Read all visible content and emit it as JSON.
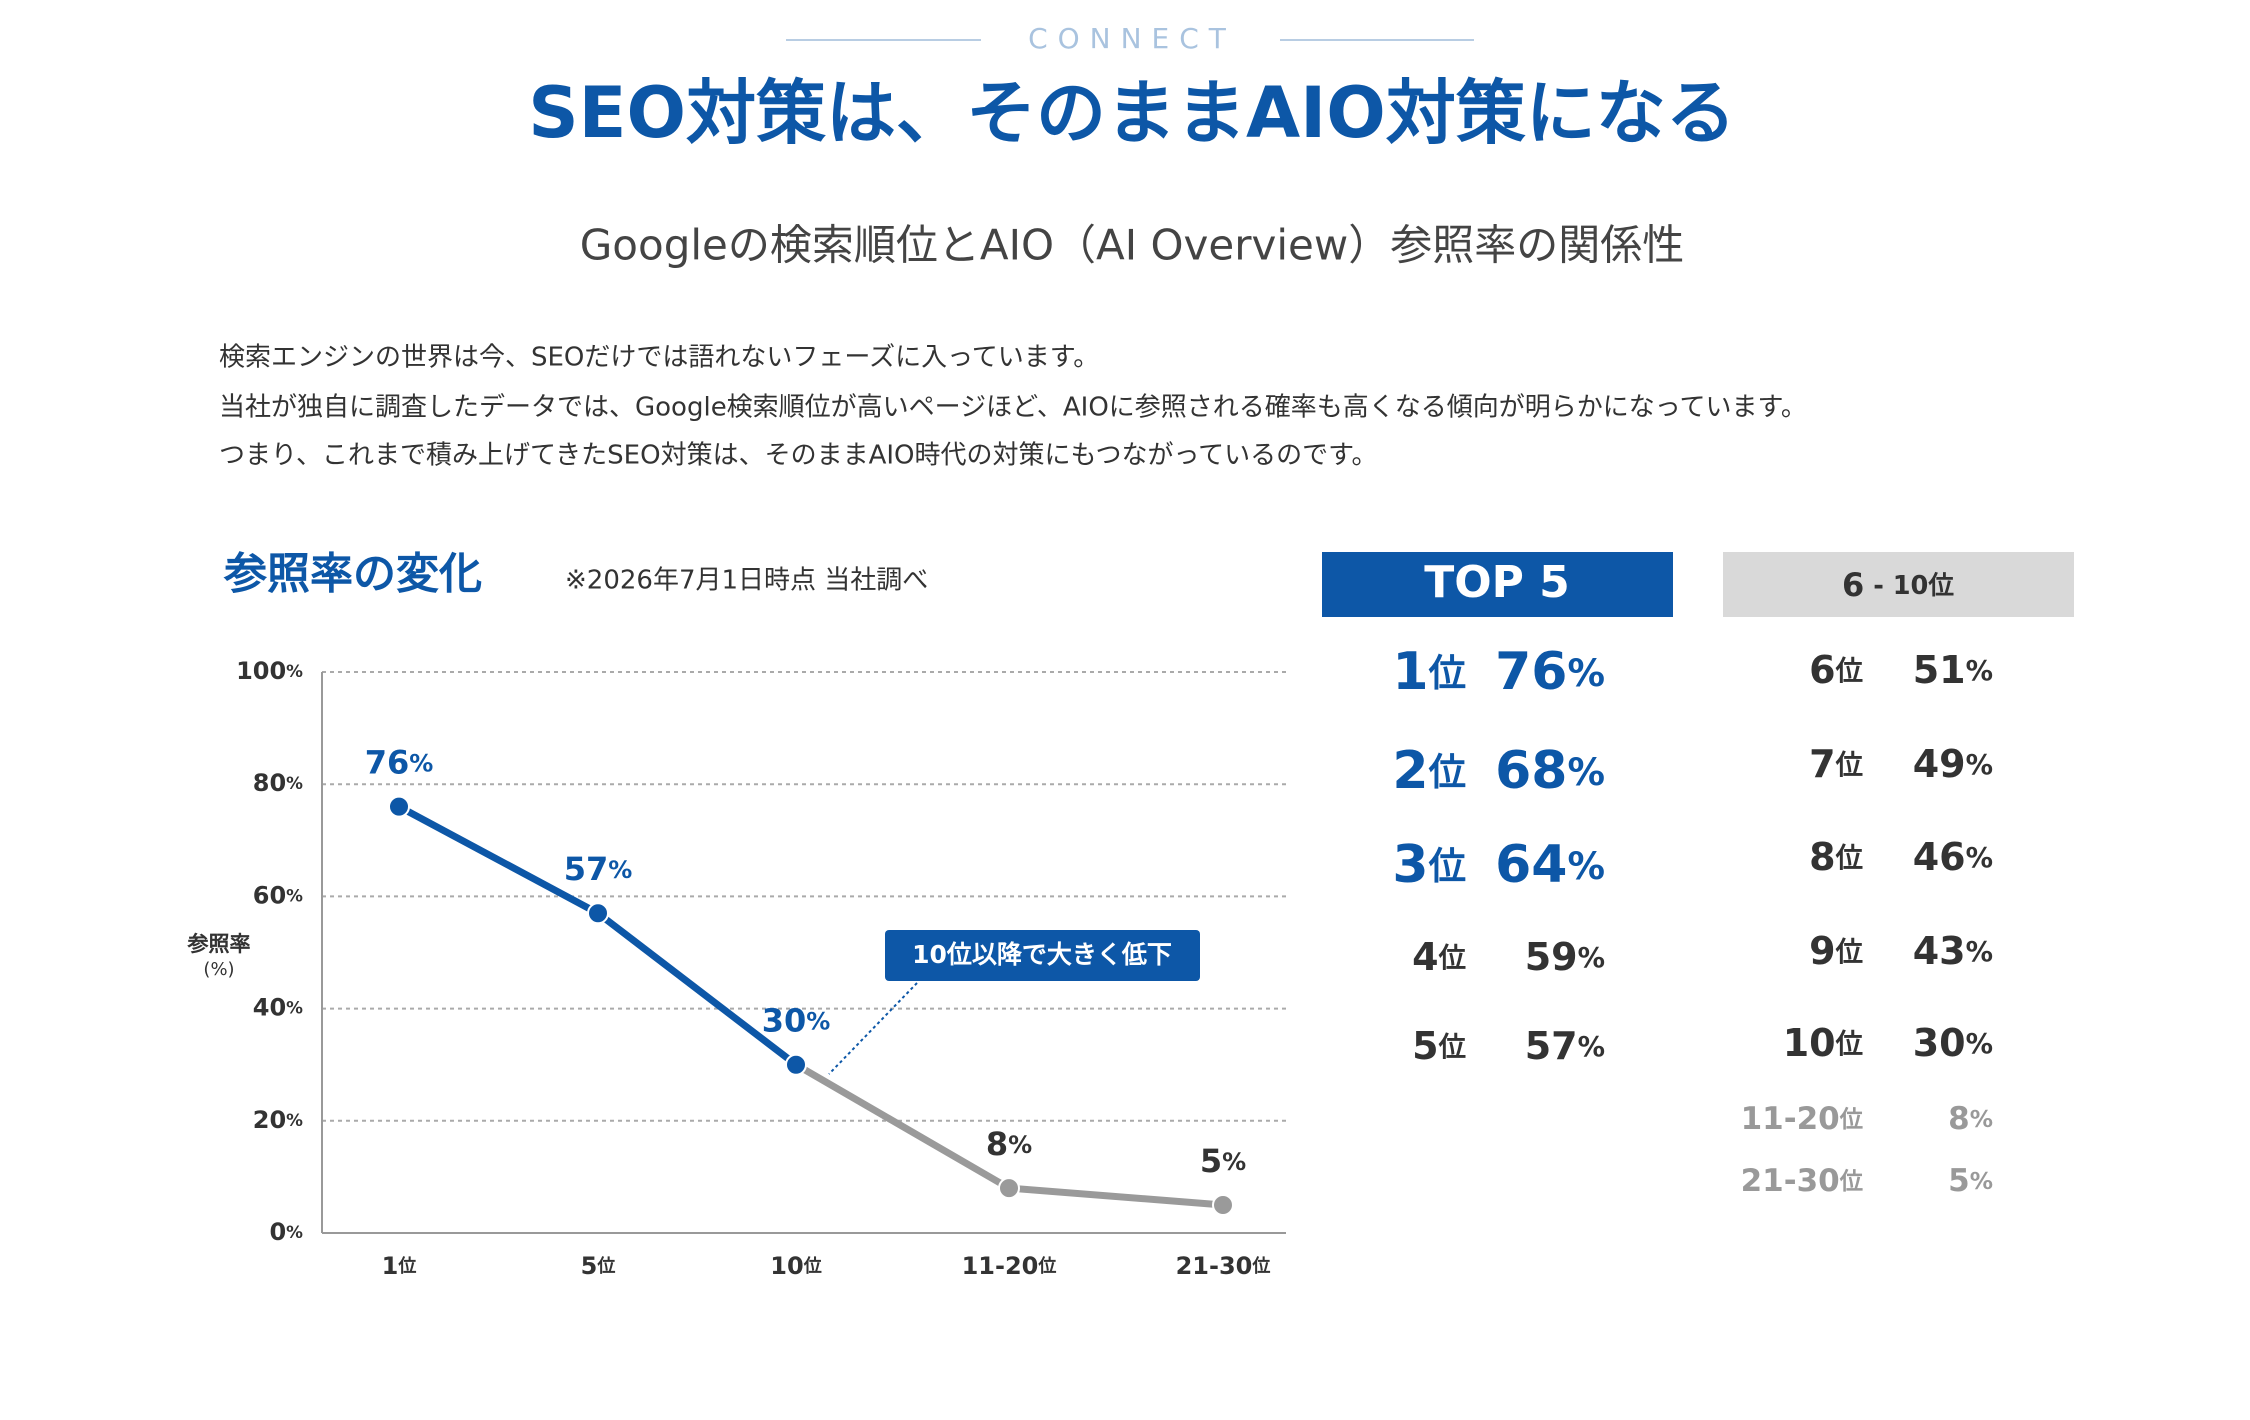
{
  "header": {
    "eyebrow": "CONNECT",
    "title": "SEO対策は、そのままAIO対策になる",
    "subtitle": "Googleの検索順位とAIO（AI Overview）参照率の関係性",
    "body": [
      "検索エンジンの世界は今、SEOだけでは語れないフェーズに入っています。",
      "当社が独自に調査したデータでは、Google検索順位が高いページほど、AIOに参照される確率も高くなる傾向が明らかになっています。",
      "つまり、これまで積み上げてきたSEO対策は、そのままAIO時代の対策にもつながっているのです。"
    ]
  },
  "section": {
    "title": "参照率の変化",
    "note": "※2026年7月1日時点 当社調べ"
  },
  "chart_data": {
    "type": "line",
    "categories": [
      "1位",
      "5位",
      "10位",
      "11-20位",
      "21-30位"
    ],
    "values": [
      76,
      57,
      30,
      8,
      5
    ],
    "value_labels": [
      "76%",
      "57%",
      "30%",
      "8%",
      "5%"
    ],
    "colors": [
      "#0d57a7",
      "#0d57a7",
      "#0d57a7",
      "#9a9a9a",
      "#9a9a9a"
    ],
    "label_colors": [
      "#0d57a7",
      "#0d57a7",
      "#0d57a7",
      "#333333",
      "#333333"
    ],
    "ylabel": [
      "参照率",
      "(%)"
    ],
    "ylim": [
      0,
      100
    ],
    "yticks": [
      {
        "value": 0,
        "label": "0%"
      },
      {
        "value": 20,
        "label": "20%"
      },
      {
        "value": 40,
        "label": "40%"
      },
      {
        "value": 60,
        "label": "60%"
      },
      {
        "value": 80,
        "label": "80%"
      },
      {
        "value": 100,
        "label": "100%"
      }
    ],
    "grid": true,
    "annotation": "10位以降で大きく低下"
  },
  "top5": {
    "title": "TOP 5",
    "rows": [
      [
        "1位",
        "76%"
      ],
      [
        "2位",
        "68%"
      ],
      [
        "3位",
        "64%"
      ],
      [
        "4位",
        "59%"
      ],
      [
        "5位",
        "57%"
      ]
    ]
  },
  "ranks": {
    "title": "6 - 10位",
    "rows": [
      [
        "6位",
        "51%"
      ],
      [
        "7位",
        "49%"
      ],
      [
        "8位",
        "46%"
      ],
      [
        "9位",
        "43%"
      ],
      [
        "10位",
        "30%"
      ]
    ],
    "extra": [
      [
        "11-20位",
        "8%"
      ],
      [
        "21-30位",
        "5%"
      ]
    ]
  }
}
